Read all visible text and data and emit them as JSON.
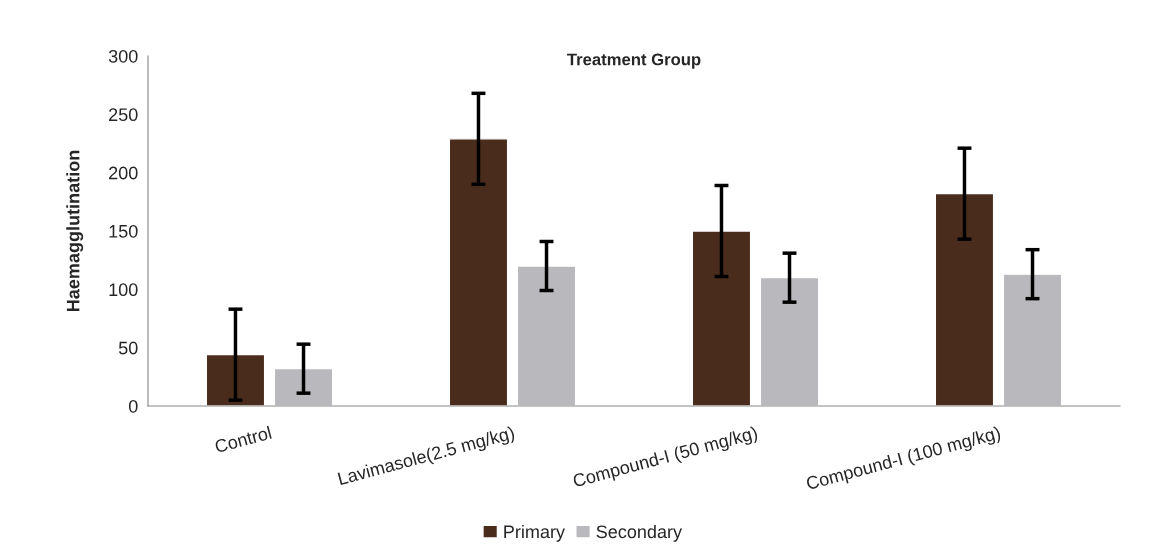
{
  "chart_data": {
    "type": "bar",
    "title": "Treatment Group",
    "ylabel": "Haemagglutination",
    "categories": [
      "Control",
      "Lavimasole(2.5 mg/kg)",
      "Compound-I (50 mg/kg)",
      "Compound-I (100 mg/kg)"
    ],
    "series": [
      {
        "name": "Primary",
        "color": "#4a2c1c",
        "values": [
          44,
          229,
          150,
          182
        ],
        "errors": [
          39,
          39,
          39,
          39
        ]
      },
      {
        "name": "Secondary",
        "color": "#b9b9bd",
        "values": [
          32,
          120,
          110,
          113
        ],
        "errors": [
          21,
          21,
          21,
          21
        ]
      }
    ],
    "ylim": [
      0,
      300
    ],
    "yticks": [
      0,
      50,
      100,
      150,
      200,
      250,
      300
    ],
    "grid": false,
    "legend": "bottom"
  }
}
